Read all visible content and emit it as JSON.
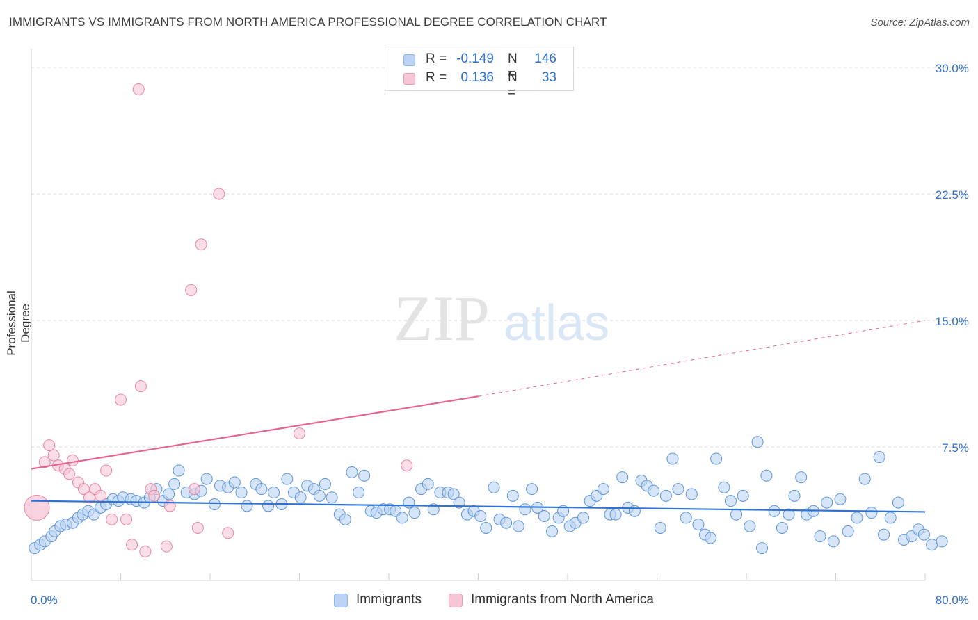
{
  "title": "IMMIGRANTS VS IMMIGRANTS FROM NORTH AMERICA PROFESSIONAL DEGREE CORRELATION CHART",
  "source": "Source: ZipAtlas.com",
  "watermark": {
    "zip": "ZIP",
    "atlas": "atlas"
  },
  "legend": {
    "rows": [
      {
        "r_label": "R =",
        "r_value": "-0.149",
        "n_label": "N =",
        "n_value": "146",
        "color": "#8ab4e8",
        "fill": "#bcd3f3"
      },
      {
        "r_label": "R =",
        "r_value": "0.136",
        "n_label": "N =",
        "n_value": "33",
        "color": "#eb9ab4",
        "fill": "#f7c6d6"
      }
    ]
  },
  "bottom_legend": {
    "items": [
      {
        "label": "Immigrants",
        "color": "#8ab4e8",
        "fill": "#bcd3f3"
      },
      {
        "label": "Immigrants from North America",
        "color": "#eb9ab4",
        "fill": "#f7c6d6"
      }
    ]
  },
  "chart_data": {
    "type": "scatter",
    "title": "IMMIGRANTS VS IMMIGRANTS FROM NORTH AMERICA PROFESSIONAL DEGREE CORRELATION CHART",
    "xlabel": "",
    "ylabel": "Professional Degree",
    "xlim": [
      0,
      80
    ],
    "ylim": [
      0,
      30
    ],
    "x_tick_labels": [
      "0.0%",
      "80.0%"
    ],
    "y_ticks": [
      7.5,
      15.0,
      22.5,
      30.0
    ],
    "y_tick_labels": [
      "7.5%",
      "15.0%",
      "22.5%",
      "30.0%"
    ],
    "grid": true,
    "series": [
      {
        "name": "Immigrants",
        "color": "#5b93dc",
        "fill": "#bcd3f3",
        "trend": {
          "x0": 0,
          "y0": 4.3,
          "x1": 80,
          "y1": 3.65,
          "style": "solid",
          "color": "#2f72d2"
        },
        "points": [
          [
            0.3,
            1.5
          ],
          [
            0.8,
            1.7
          ],
          [
            1.2,
            1.9
          ],
          [
            1.8,
            2.2
          ],
          [
            2.1,
            2.5
          ],
          [
            2.6,
            2.8
          ],
          [
            3.1,
            2.9
          ],
          [
            3.7,
            3.0
          ],
          [
            4.2,
            3.3
          ],
          [
            4.6,
            3.5
          ],
          [
            5.1,
            3.7
          ],
          [
            5.6,
            3.5
          ],
          [
            6.2,
            3.9
          ],
          [
            6.7,
            4.1
          ],
          [
            7.3,
            4.4
          ],
          [
            7.8,
            4.3
          ],
          [
            8.2,
            4.5
          ],
          [
            8.9,
            4.4
          ],
          [
            9.4,
            4.3
          ],
          [
            10.1,
            4.2
          ],
          [
            10.6,
            4.5
          ],
          [
            11.2,
            5.0
          ],
          [
            11.8,
            4.3
          ],
          [
            12.3,
            4.7
          ],
          [
            12.8,
            5.3
          ],
          [
            13.2,
            6.1
          ],
          [
            13.9,
            4.8
          ],
          [
            14.6,
            4.7
          ],
          [
            15.2,
            4.9
          ],
          [
            15.7,
            5.6
          ],
          [
            16.4,
            4.1
          ],
          [
            16.9,
            5.2
          ],
          [
            17.6,
            5.1
          ],
          [
            18.2,
            5.4
          ],
          [
            18.8,
            4.8
          ],
          [
            19.3,
            4.0
          ],
          [
            20.1,
            5.3
          ],
          [
            20.6,
            5.0
          ],
          [
            21.2,
            4.0
          ],
          [
            21.7,
            4.8
          ],
          [
            22.4,
            4.1
          ],
          [
            22.9,
            5.6
          ],
          [
            23.5,
            4.8
          ],
          [
            24.1,
            4.5
          ],
          [
            24.7,
            5.2
          ],
          [
            25.3,
            5.0
          ],
          [
            25.8,
            4.6
          ],
          [
            26.3,
            5.3
          ],
          [
            26.9,
            4.5
          ],
          [
            27.6,
            3.5
          ],
          [
            28.1,
            3.2
          ],
          [
            28.7,
            6.0
          ],
          [
            29.3,
            4.8
          ],
          [
            29.8,
            5.8
          ],
          [
            30.4,
            3.7
          ],
          [
            30.9,
            3.6
          ],
          [
            31.5,
            3.8
          ],
          [
            32.1,
            3.8
          ],
          [
            32.6,
            3.7
          ],
          [
            33.2,
            3.3
          ],
          [
            33.8,
            4.2
          ],
          [
            34.3,
            3.6
          ],
          [
            34.9,
            5.0
          ],
          [
            35.5,
            5.3
          ],
          [
            36.0,
            3.8
          ],
          [
            36.6,
            4.8
          ],
          [
            37.3,
            4.8
          ],
          [
            37.8,
            4.7
          ],
          [
            38.3,
            4.2
          ],
          [
            39.0,
            3.5
          ],
          [
            39.6,
            3.7
          ],
          [
            40.2,
            3.4
          ],
          [
            40.7,
            2.7
          ],
          [
            41.4,
            5.1
          ],
          [
            41.9,
            3.2
          ],
          [
            42.5,
            3.0
          ],
          [
            43.1,
            4.6
          ],
          [
            43.6,
            2.8
          ],
          [
            44.2,
            3.8
          ],
          [
            44.8,
            5.0
          ],
          [
            45.3,
            3.9
          ],
          [
            45.9,
            3.4
          ],
          [
            46.6,
            2.5
          ],
          [
            47.2,
            3.3
          ],
          [
            47.6,
            3.7
          ],
          [
            48.2,
            2.8
          ],
          [
            48.7,
            3.0
          ],
          [
            49.4,
            3.3
          ],
          [
            50.0,
            4.3
          ],
          [
            50.6,
            4.6
          ],
          [
            51.2,
            5.0
          ],
          [
            51.8,
            3.5
          ],
          [
            52.3,
            3.5
          ],
          [
            52.9,
            5.7
          ],
          [
            53.4,
            3.9
          ],
          [
            54.0,
            3.7
          ],
          [
            54.6,
            5.5
          ],
          [
            55.1,
            5.2
          ],
          [
            55.7,
            4.9
          ],
          [
            56.3,
            2.7
          ],
          [
            56.8,
            4.6
          ],
          [
            57.4,
            6.8
          ],
          [
            57.9,
            5.0
          ],
          [
            58.6,
            3.3
          ],
          [
            59.1,
            4.7
          ],
          [
            59.7,
            2.9
          ],
          [
            60.3,
            2.3
          ],
          [
            60.8,
            2.1
          ],
          [
            61.3,
            6.8
          ],
          [
            62.0,
            5.1
          ],
          [
            62.6,
            4.3
          ],
          [
            63.1,
            3.5
          ],
          [
            63.7,
            4.6
          ],
          [
            64.3,
            2.8
          ],
          [
            65.0,
            7.8
          ],
          [
            65.4,
            1.5
          ],
          [
            65.8,
            5.8
          ],
          [
            66.5,
            3.7
          ],
          [
            67.2,
            2.7
          ],
          [
            67.8,
            3.5
          ],
          [
            68.3,
            4.6
          ],
          [
            68.9,
            5.7
          ],
          [
            69.4,
            3.5
          ],
          [
            70.0,
            3.7
          ],
          [
            70.6,
            2.2
          ],
          [
            71.2,
            4.2
          ],
          [
            71.8,
            1.9
          ],
          [
            72.4,
            4.4
          ],
          [
            73.1,
            2.5
          ],
          [
            73.9,
            3.3
          ],
          [
            74.6,
            5.6
          ],
          [
            75.2,
            3.6
          ],
          [
            75.9,
            6.9
          ],
          [
            76.3,
            2.3
          ],
          [
            76.9,
            3.3
          ],
          [
            77.6,
            4.2
          ],
          [
            78.1,
            2.0
          ],
          [
            78.8,
            2.2
          ],
          [
            79.4,
            2.6
          ],
          [
            79.9,
            2.3
          ],
          [
            80.6,
            1.7
          ],
          [
            81.5,
            1.9
          ]
        ]
      },
      {
        "name": "Immigrants from North America",
        "color": "#e684a3",
        "fill": "#f7c6d6",
        "trend": {
          "x0": 0,
          "y0": 6.2,
          "x1": 40,
          "y1": 10.5,
          "style": "solid",
          "color": "#e5648f",
          "extended": {
            "x1": 80,
            "y1": 15.0,
            "style": "dashed"
          }
        },
        "points": [
          [
            0.5,
            3.9
          ],
          [
            1.2,
            6.6
          ],
          [
            1.6,
            7.6
          ],
          [
            2.0,
            7.0
          ],
          [
            2.4,
            6.4
          ],
          [
            3.0,
            6.2
          ],
          [
            3.4,
            5.9
          ],
          [
            3.7,
            6.7
          ],
          [
            4.2,
            5.4
          ],
          [
            4.7,
            5.0
          ],
          [
            5.2,
            4.5
          ],
          [
            5.7,
            5.0
          ],
          [
            6.2,
            4.6
          ],
          [
            6.7,
            6.1
          ],
          [
            7.2,
            3.2
          ],
          [
            8.0,
            10.3
          ],
          [
            8.5,
            3.2
          ],
          [
            9.0,
            1.7
          ],
          [
            9.6,
            28.7
          ],
          [
            9.8,
            11.1
          ],
          [
            10.2,
            1.3
          ],
          [
            10.7,
            5.0
          ],
          [
            11.0,
            4.6
          ],
          [
            12.1,
            1.6
          ],
          [
            12.4,
            4.0
          ],
          [
            14.3,
            16.8
          ],
          [
            14.6,
            5.0
          ],
          [
            14.9,
            2.7
          ],
          [
            15.2,
            19.5
          ],
          [
            16.8,
            22.5
          ],
          [
            17.6,
            2.4
          ],
          [
            24.0,
            8.3
          ],
          [
            33.6,
            6.4
          ]
        ]
      }
    ]
  }
}
